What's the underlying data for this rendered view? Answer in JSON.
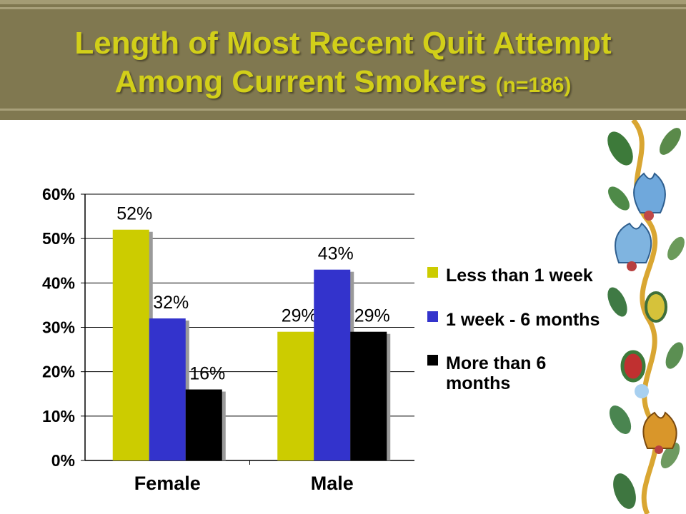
{
  "title": {
    "line1": "Length of Most Recent Quit Attempt",
    "line2": "Among Current Smokers",
    "suffix": "(n=186)"
  },
  "colors": {
    "header_bg": "#807850",
    "title_text": "#d2cf19",
    "series": [
      "#cccc00",
      "#3333cc",
      "#000000"
    ]
  },
  "chart_data": {
    "type": "bar",
    "categories": [
      "Female",
      "Male"
    ],
    "series": [
      {
        "name": "Less than 1 week",
        "values": [
          52,
          29
        ],
        "labels": [
          "52%",
          "29%"
        ]
      },
      {
        "name": "1 week - 6 months",
        "values": [
          32,
          43
        ],
        "labels": [
          "32%",
          "43%"
        ]
      },
      {
        "name": "More than 6 months",
        "values": [
          16,
          29
        ],
        "labels": [
          "16%",
          "29%"
        ]
      }
    ],
    "yticks": [
      "0%",
      "10%",
      "20%",
      "30%",
      "40%",
      "50%",
      "60%"
    ],
    "ylim": [
      0,
      60
    ],
    "grid": true,
    "legend_position": "right"
  },
  "legend": {
    "items": [
      {
        "lines": [
          "Less than 1 week"
        ]
      },
      {
        "lines": [
          "1 week - 6 months"
        ]
      },
      {
        "lines": [
          "More than 6",
          "months"
        ]
      }
    ]
  }
}
